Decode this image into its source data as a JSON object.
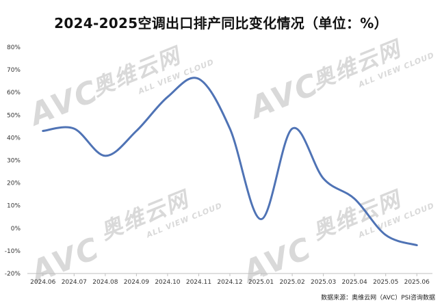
{
  "chart_data": {
    "type": "line",
    "title": "2024-2025空调出口排产同比变化情况（单位：%）",
    "categories": [
      "2024.06",
      "2024.07",
      "2024.08",
      "2024.09",
      "2024.10",
      "2024.11",
      "2024.12",
      "2025.01",
      "2025.02",
      "2025.03",
      "2025.04",
      "2025.05",
      "2025.06"
    ],
    "series": [
      {
        "values": [
          43,
          44,
          32,
          43,
          58,
          66,
          44,
          4,
          44,
          22,
          13,
          -3,
          -7.5
        ]
      }
    ],
    "ylim": [
      -20,
      80
    ],
    "yticks": [
      -20,
      -10,
      0,
      10,
      20,
      30,
      40,
      50,
      60,
      70,
      80
    ],
    "ytick_suffix": "%",
    "grid": false,
    "legend": "none",
    "line_color": "#4f73b5"
  },
  "watermark": {
    "logo_text": "AVC",
    "brand_text": "奥维云网",
    "sub_text": "ALL VIEW CLOUD"
  },
  "source": "数据来源：奥维云网（AVC）PSI咨询数据"
}
